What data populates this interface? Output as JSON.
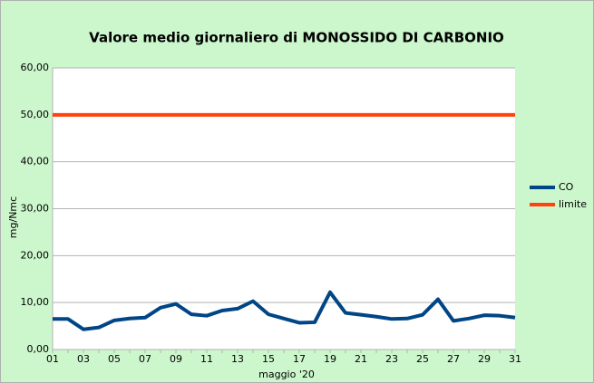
{
  "chart_data": {
    "type": "line",
    "title": "Valore medio giornaliero di MONOSSIDO DI CARBONIO",
    "x_label": "maggio '20",
    "y_label": "mg/Nmc",
    "categories": [
      "01",
      null,
      "03",
      null,
      "05",
      null,
      "07",
      null,
      "09",
      null,
      "11",
      null,
      "13",
      null,
      "15",
      null,
      "17",
      null,
      "19",
      null,
      "21",
      null,
      "23",
      null,
      "25",
      null,
      "27",
      null,
      "29",
      null,
      "31"
    ],
    "series": [
      {
        "name": "CO",
        "color": "#004586",
        "values": [
          6.5,
          6.5,
          4.3,
          4.7,
          6.2,
          6.6,
          6.8,
          8.9,
          9.7,
          7.5,
          7.2,
          8.3,
          8.7,
          10.3,
          7.5,
          6.6,
          5.7,
          5.8,
          12.2,
          7.8,
          7.4,
          7.0,
          6.5,
          6.6,
          7.4,
          10.7,
          6.1,
          6.6,
          7.3,
          7.2,
          6.8
        ]
      },
      {
        "name": "limite",
        "color": "#ff420e",
        "values": [
          50,
          50,
          50,
          50,
          50,
          50,
          50,
          50,
          50,
          50,
          50,
          50,
          50,
          50,
          50,
          50,
          50,
          50,
          50,
          50,
          50,
          50,
          50,
          50,
          50,
          50,
          50,
          50,
          50,
          50,
          50
        ]
      }
    ],
    "ylim": [
      0,
      60
    ],
    "yticks": [
      {
        "value": 0,
        "label": "0,00"
      },
      {
        "value": 10,
        "label": "10,00"
      },
      {
        "value": 20,
        "label": "20,00"
      },
      {
        "value": 30,
        "label": "30,00"
      },
      {
        "value": 40,
        "label": "40,00"
      },
      {
        "value": 50,
        "label": "50,00"
      },
      {
        "value": 60,
        "label": "60,00"
      }
    ],
    "grid": true,
    "legend": "right"
  }
}
